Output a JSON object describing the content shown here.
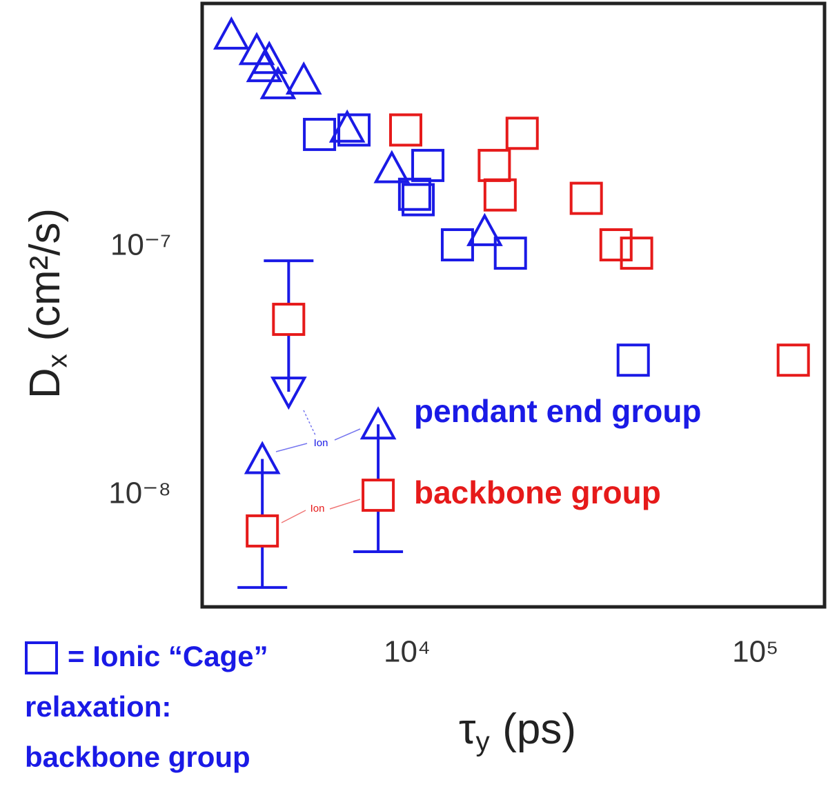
{
  "chart_data": {
    "type": "scatter",
    "xscale": "log",
    "yscale": "log",
    "xlim": [
      2580,
      158000
    ],
    "ylim": [
      3.55e-09,
      9.57e-07
    ],
    "xticks": [
      {
        "value": 10000,
        "label": "10⁴"
      },
      {
        "value": 100000,
        "label": "10⁵"
      }
    ],
    "yticks": [
      {
        "value": 1e-08,
        "label": "10⁻⁸"
      },
      {
        "value": 1e-07,
        "label": "10⁻⁷"
      }
    ],
    "xlabel": {
      "symbol": "τ",
      "subscript": "y",
      "unit": "(ps)"
    },
    "ylabel": {
      "symbol": "D",
      "subscript": "x",
      "unit": "(cm²/s)"
    },
    "series": [
      {
        "name": "pendant end group",
        "color": "#1a1ae6",
        "marker": "triangle",
        "x": [
          3130,
          3700,
          4020,
          3890,
          4260,
          5050,
          6730,
          9040,
          16700
        ],
        "values": [
          7.18e-07,
          6.22e-07,
          5.73e-07,
          5.31e-07,
          4.53e-07,
          4.73e-07,
          3.03e-07,
          2.08e-07,
          1.16e-07
        ]
      },
      {
        "name": "backbone group",
        "color": "#e61a1a",
        "marker": "square",
        "x": [
          9910,
          17800,
          21400,
          18500,
          32700,
          39800,
          45600,
          128500
        ],
        "values": [
          2.96e-07,
          2.13e-07,
          2.87e-07,
          1.62e-07,
          1.57e-07,
          1.02e-07,
          9.44e-08,
          3.5e-08
        ]
      },
      {
        "name": [
          "= Ionic “Cage”",
          "relaxation:",
          "backbone group"
        ],
        "color": "#1a1ae6",
        "marker": "square",
        "x": [
          5605,
          7040,
          11470,
          10510,
          10760,
          13950,
          19800,
          44600
        ],
        "values": [
          2.84e-07,
          2.96e-07,
          2.13e-07,
          1.63e-07,
          1.55e-07,
          1.02e-07,
          9.44e-08,
          3.5e-08
        ]
      }
    ],
    "ion_points": [
      {
        "x": 4570,
        "square": 5.11e-08,
        "triangle": 2.61e-08,
        "triangle_dir": "down",
        "bar_end": 8.8e-08
      },
      {
        "x": 3840,
        "square": 7.18e-09,
        "triangle": 1.4e-08,
        "triangle_dir": "up",
        "bar_end": 4.25e-09
      },
      {
        "x": 8260,
        "square": 1e-08,
        "triangle": 1.93e-08,
        "triangle_dir": "up",
        "bar_end": 5.92e-09
      }
    ],
    "annotations": [
      {
        "text": "Ion",
        "color": "#1a1ae6"
      },
      {
        "text": "Ion",
        "color": "#e61a1a"
      }
    ]
  }
}
